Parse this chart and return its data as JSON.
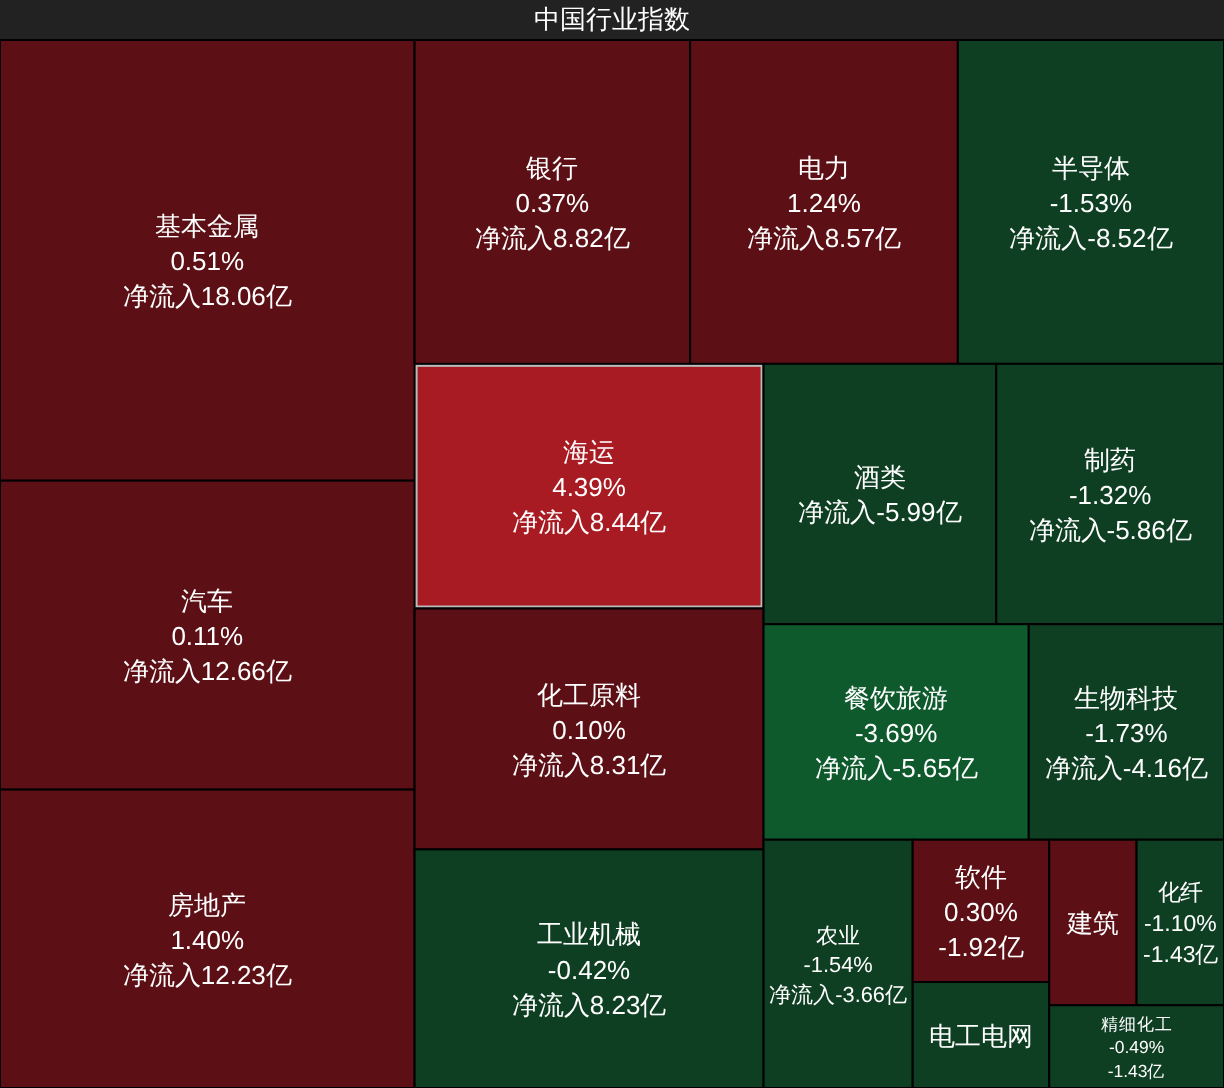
{
  "chart_data": {
    "type": "other",
    "title": "中国行业指数",
    "categories": [
      "基本金属",
      "汽车",
      "房地产",
      "银行",
      "电力",
      "海运",
      "化工原料",
      "工业机械",
      "电工电网",
      "建筑",
      "化纤",
      "精细化工",
      "软件",
      "农业",
      "生物科技",
      "餐饮旅游",
      "制药",
      "半导体",
      "酒类"
    ],
    "series": [
      {
        "colors": [
          "#5c1016",
          "#5c1016",
          "#5c1016",
          "#5c1016",
          "#5c1016",
          "#a81b22",
          "#5c1016",
          "#0f3f22",
          "#0f3f22",
          "#5c1016",
          "#0f3f22",
          "#0f3f22",
          "#5c1016",
          "#0f3f22",
          "#0f3f22",
          "#0e5a2d",
          "#0f3f22",
          "#0f3f22",
          "#0f3f22"
        ],
        "values": [
          0.51,
          0.11,
          1.4,
          0.37,
          1.24,
          4.39,
          0.1,
          -0.42,
          null,
          null,
          -1.1,
          -0.49,
          0.3,
          -1.54,
          -1.73,
          -3.69,
          -1.32,
          -1.53,
          null
        ],
        "value_labels": [
          "0.51%",
          "0.11%",
          "1.40%",
          "0.37%",
          "1.24%",
          "4.39%",
          "0.10%",
          "-0.42%",
          null,
          null,
          "-1.10%",
          "-0.49%",
          "0.30%",
          "-1.54%",
          "-1.73%",
          "-3.69%",
          "-1.32%",
          "-1.53%",
          null
        ]
      },
      {
        "values": [
          18.06,
          12.66,
          12.23,
          8.82,
          8.57,
          8.44,
          8.31,
          8.23,
          null,
          null,
          -1.43,
          -1.43,
          -1.92,
          -3.66,
          -4.16,
          -5.65,
          -5.86,
          -8.52,
          -5.99
        ],
        "value_labels": [
          "净流入18.06亿",
          "净流入12.66亿",
          "净流入12.23亿",
          "净流入8.82亿",
          "净流入8.57亿",
          "净流入8.44亿",
          "净流入8.31亿",
          "净流入8.23亿",
          null,
          null,
          "-1.43亿",
          "-1.43亿",
          "-1.92亿",
          "净流入-3.66亿",
          "净流入-4.16亿",
          "净流入-5.65亿",
          "净流入-5.86亿",
          "净流入-8.52亿",
          "净流入-5.99亿"
        ]
      }
    ]
  }
}
